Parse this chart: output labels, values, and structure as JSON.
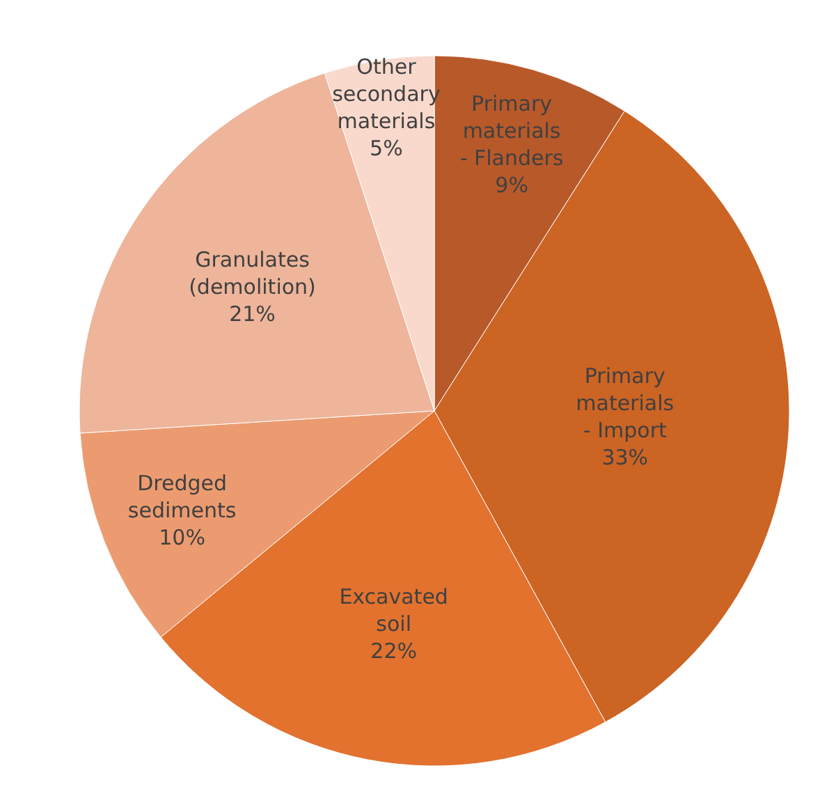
{
  "chart_data": {
    "type": "pie",
    "categories": [
      "Primary materials - Flanders",
      "Primary materials - Import",
      "Excavated soil",
      "Dredged sediments",
      "Granulates (demolition)",
      "Other secondary materials"
    ],
    "values": [
      9,
      33,
      22,
      10,
      21,
      5
    ],
    "value_labels": [
      "9%",
      "33%",
      "22%",
      "10%",
      "21%",
      "5%"
    ],
    "colors": [
      "#b8592a",
      "#cc6424",
      "#e2722e",
      "#ec9b70",
      "#eeb59a",
      "#f8d9cc"
    ],
    "legend": false
  }
}
